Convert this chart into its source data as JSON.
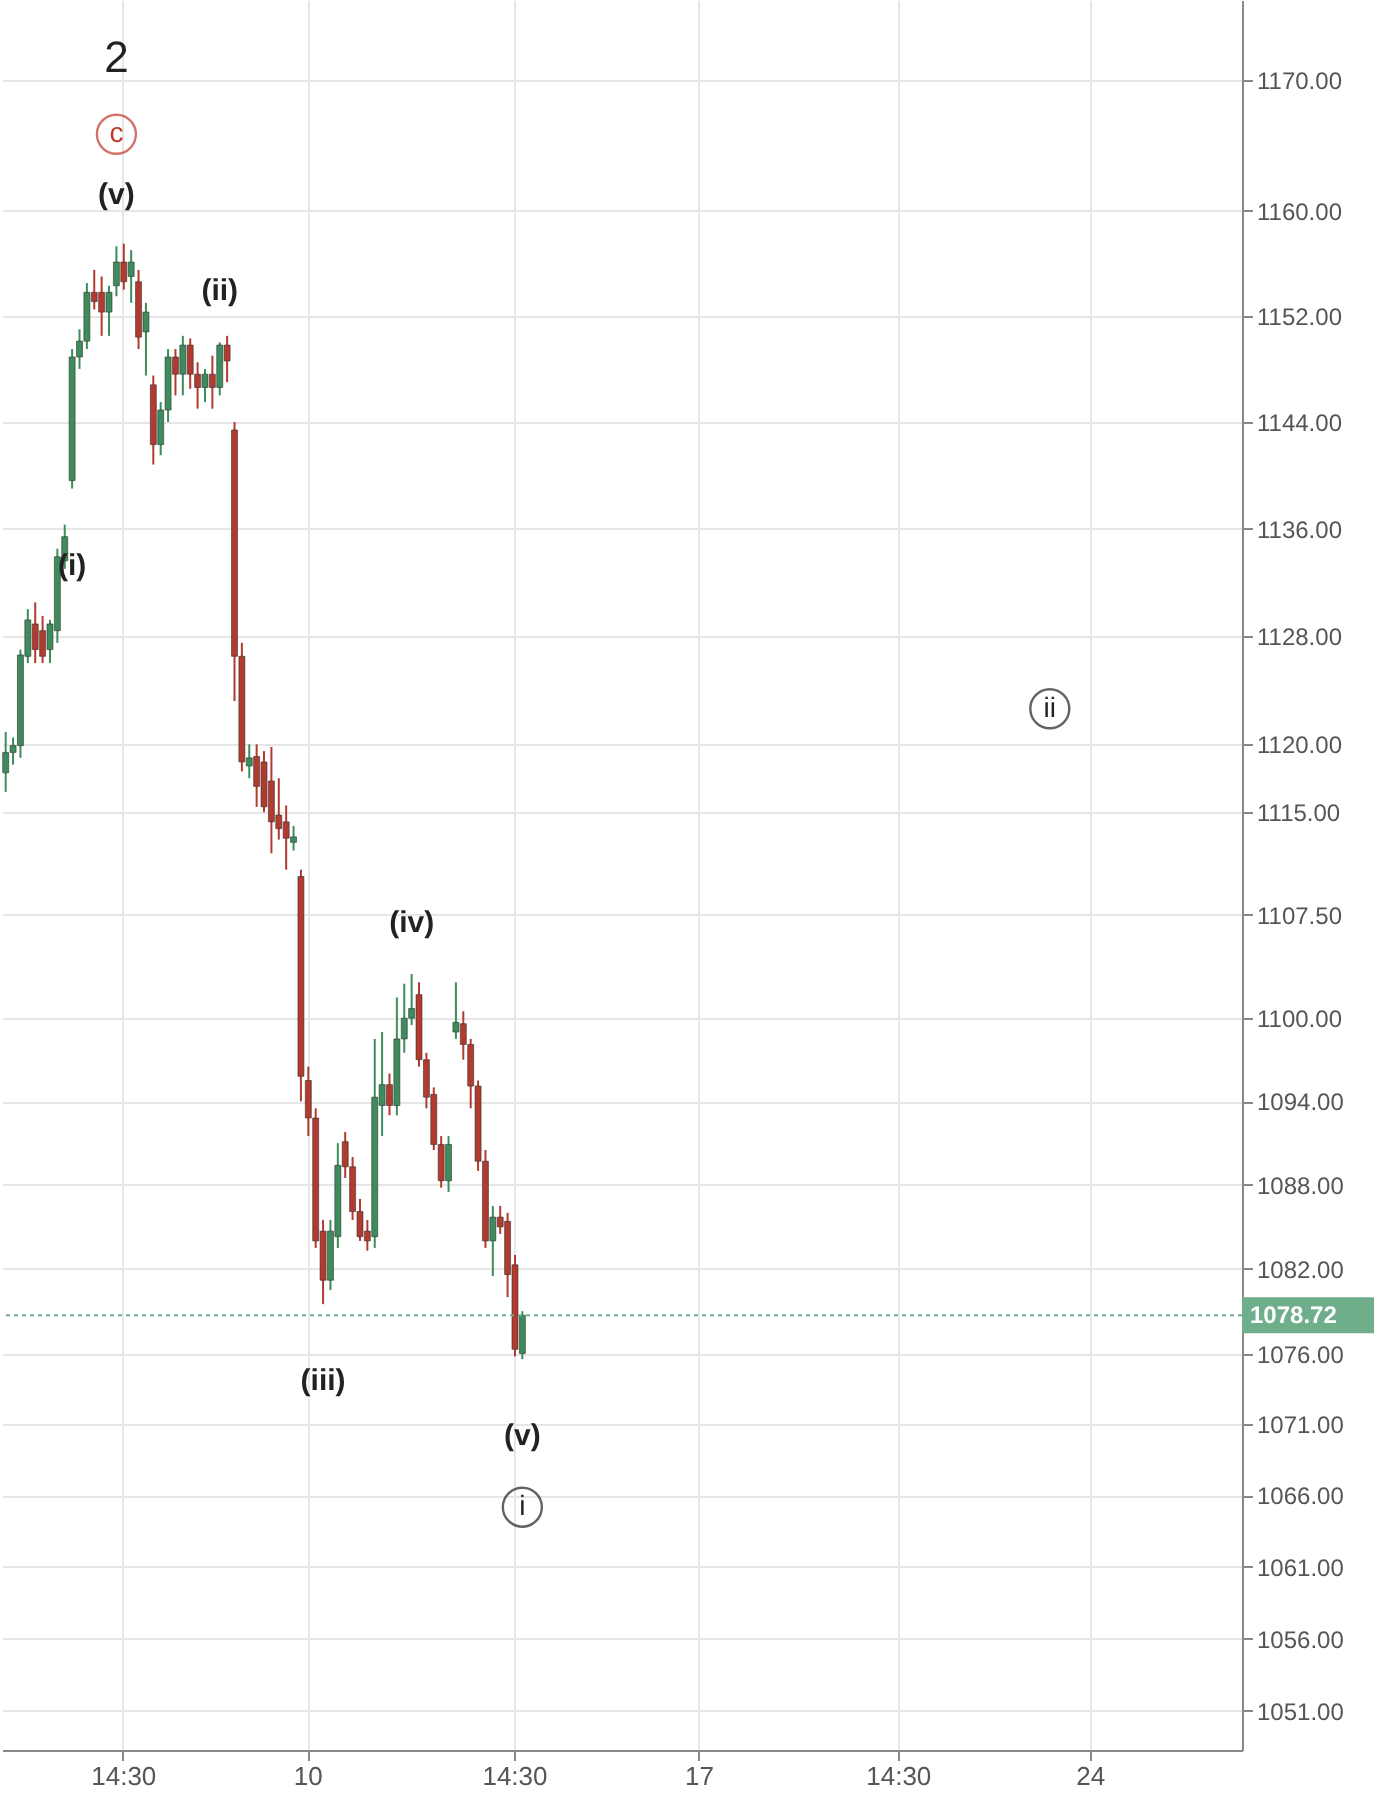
{
  "chart_data": {
    "type": "candlestick",
    "log": true,
    "grid": true,
    "categories": [
      null,
      null,
      null,
      null,
      null,
      null,
      null,
      null,
      null,
      null,
      null,
      null,
      null,
      null,
      null,
      null,
      "14:30",
      null,
      null,
      null,
      null,
      null,
      null,
      null,
      null,
      null,
      null,
      null,
      null,
      null,
      null,
      null,
      null,
      null,
      null,
      null,
      null,
      null,
      null,
      null,
      null,
      "10",
      null,
      null,
      null,
      null,
      null,
      null,
      null,
      null,
      null,
      null,
      null,
      null,
      null,
      null,
      null,
      null,
      null,
      null,
      null,
      null,
      null,
      null,
      null,
      null,
      null,
      null,
      null,
      "14:30",
      null,
      null,
      null,
      null,
      null,
      null,
      null,
      null,
      null,
      null,
      null,
      null,
      null,
      null,
      null,
      null,
      null,
      null,
      null,
      null,
      null,
      null,
      null,
      null,
      "17",
      null,
      null,
      null,
      null,
      null,
      null,
      null,
      null,
      null,
      null,
      null,
      null,
      null,
      null,
      null,
      null,
      null,
      null,
      null,
      null,
      null,
      null,
      null,
      null,
      null,
      null,
      "14:30",
      null,
      null,
      null,
      null,
      null,
      null,
      null,
      null,
      null,
      null,
      null,
      null,
      null,
      null,
      null,
      null,
      null,
      null,
      null,
      null,
      null,
      null,
      null,
      null,
      null,
      "24",
      null,
      null,
      null,
      null,
      null,
      null,
      null,
      null,
      null,
      null,
      null,
      null,
      null,
      null,
      null,
      null,
      null,
      null,
      null,
      null
    ],
    "ylim": [
      1048.3,
      1176.2
    ],
    "yticks": [
      {
        "value": 1051,
        "label": "1051.00"
      },
      {
        "value": 1056,
        "label": "1056.00"
      },
      {
        "value": 1061,
        "label": "1061.00"
      },
      {
        "value": 1066,
        "label": "1066.00"
      },
      {
        "value": 1071,
        "label": "1071.00"
      },
      {
        "value": 1076,
        "label": "1076.00"
      },
      {
        "value": 1082,
        "label": "1082.00"
      },
      {
        "value": 1088,
        "label": "1088.00"
      },
      {
        "value": 1094,
        "label": "1094.00"
      },
      {
        "value": 1100,
        "label": "1100.00"
      },
      {
        "value": 1107.5,
        "label": "1107.50"
      },
      {
        "value": 1115,
        "label": "1115.00"
      },
      {
        "value": 1120,
        "label": "1120.00"
      },
      {
        "value": 1128,
        "label": "1128.00"
      },
      {
        "value": 1136,
        "label": "1136.00"
      },
      {
        "value": 1144,
        "label": "1144.00"
      },
      {
        "value": 1152,
        "label": "1152.00"
      },
      {
        "value": 1160,
        "label": "1160.00"
      },
      {
        "value": 1170,
        "label": "1170.00"
      }
    ],
    "ohlc": [
      [
        1117.9,
        1120.9,
        1116.5,
        1119.4
      ],
      [
        1119.4,
        1120.5,
        1118.5,
        1119.9
      ],
      [
        1119.9,
        1127.0,
        1119.0,
        1126.6
      ],
      [
        1126.5,
        1130.0,
        1126.0,
        1129.2
      ],
      [
        1128.9,
        1130.5,
        1126.0,
        1127.0
      ],
      [
        1128.4,
        1129.5,
        1126.0,
        1126.5
      ],
      [
        1127.0,
        1129.2,
        1126.0,
        1128.9
      ],
      [
        1128.4,
        1134.5,
        1127.5,
        1133.9
      ],
      [
        1133.6,
        1136.3,
        1133.0,
        1135.4
      ],
      [
        1139.6,
        1149.5,
        1139.0,
        1148.9
      ],
      [
        1148.9,
        1151.0,
        1148.0,
        1150.1
      ],
      [
        1150.1,
        1154.5,
        1149.5,
        1153.8
      ],
      [
        1153.8,
        1155.5,
        1152.5,
        1153.1
      ],
      [
        1153.8,
        1155.0,
        1150.5,
        1152.3
      ],
      [
        1152.3,
        1154.3,
        1150.5,
        1153.8
      ],
      [
        1154.3,
        1157.3,
        1153.5,
        1156.1
      ],
      [
        1156.1,
        1157.5,
        1154.0,
        1154.6
      ],
      [
        1155.0,
        1157.0,
        1153.0,
        1156.1
      ],
      [
        1154.6,
        1155.5,
        1149.5,
        1150.4
      ],
      [
        1150.8,
        1153.0,
        1147.5,
        1152.3
      ],
      [
        1146.8,
        1147.5,
        1140.8,
        1142.3
      ],
      [
        1142.3,
        1145.5,
        1141.5,
        1144.9
      ],
      [
        1144.9,
        1149.5,
        1144.0,
        1148.9
      ],
      [
        1148.9,
        1149.5,
        1146.0,
        1147.6
      ],
      [
        1147.6,
        1150.5,
        1146.0,
        1149.8
      ],
      [
        1149.8,
        1150.3,
        1146.5,
        1147.6
      ],
      [
        1147.6,
        1148.5,
        1145.0,
        1146.6
      ],
      [
        1146.6,
        1148.0,
        1145.5,
        1147.6
      ],
      [
        1147.6,
        1149.0,
        1145.0,
        1146.6
      ],
      [
        1146.6,
        1150.0,
        1146.0,
        1149.8
      ],
      [
        1149.8,
        1150.5,
        1147.0,
        1148.6
      ],
      [
        1143.4,
        1144.0,
        1123.2,
        1126.5
      ],
      [
        1126.5,
        1127.5,
        1118.0,
        1118.7
      ],
      [
        1118.4,
        1120.0,
        1117.5,
        1119.0
      ],
      [
        1119.1,
        1120.0,
        1115.4,
        1116.9
      ],
      [
        1118.7,
        1119.5,
        1115.0,
        1115.4
      ],
      [
        1117.3,
        1119.8,
        1112.0,
        1114.3
      ],
      [
        1114.8,
        1117.5,
        1113.0,
        1113.8
      ],
      [
        1114.3,
        1115.5,
        1110.8,
        1113.1
      ],
      [
        1112.8,
        1114.0,
        1112.2,
        1113.2
      ],
      [
        1110.3,
        1110.8,
        1094.0,
        1095.8
      ],
      [
        1095.5,
        1096.5,
        1091.5,
        1092.8
      ],
      [
        1092.8,
        1093.5,
        1083.5,
        1084.0
      ],
      [
        1084.7,
        1085.5,
        1079.5,
        1081.2
      ],
      [
        1081.2,
        1085.5,
        1080.5,
        1084.7
      ],
      [
        1084.3,
        1091.0,
        1083.5,
        1089.4
      ],
      [
        1091.1,
        1091.8,
        1088.5,
        1089.3
      ],
      [
        1089.3,
        1090.0,
        1085.5,
        1086.1
      ],
      [
        1086.1,
        1087.0,
        1084.0,
        1084.3
      ],
      [
        1084.7,
        1085.5,
        1083.3,
        1084.0
      ],
      [
        1084.3,
        1098.5,
        1083.5,
        1094.3
      ],
      [
        1093.7,
        1099.0,
        1091.5,
        1095.2
      ],
      [
        1095.2,
        1096.0,
        1093.0,
        1093.7
      ],
      [
        1093.7,
        1101.5,
        1093.0,
        1098.5
      ],
      [
        1098.5,
        1102.5,
        1097.5,
        1100.0
      ],
      [
        1100.0,
        1103.2,
        1099.5,
        1100.7
      ],
      [
        1101.7,
        1102.6,
        1096.5,
        1097.0
      ],
      [
        1097.0,
        1097.5,
        1093.5,
        1094.3
      ],
      [
        1094.5,
        1095.0,
        1090.5,
        1090.9
      ],
      [
        1090.9,
        1091.5,
        1087.8,
        1088.3
      ],
      [
        1088.3,
        1091.5,
        1087.5,
        1090.9
      ],
      [
        1099.0,
        1102.6,
        1098.5,
        1099.7
      ],
      [
        1099.6,
        1100.5,
        1097.0,
        1098.1
      ],
      [
        1098.1,
        1098.5,
        1093.5,
        1095.1
      ],
      [
        1095.1,
        1095.5,
        1089.0,
        1089.7
      ],
      [
        1089.7,
        1090.5,
        1083.5,
        1084.0
      ],
      [
        1084.0,
        1086.5,
        1081.5,
        1085.7
      ],
      [
        1085.7,
        1086.5,
        1084.5,
        1085.0
      ],
      [
        1085.4,
        1086.0,
        1080.0,
        1081.6
      ],
      [
        1082.3,
        1083.0,
        1075.8,
        1076.3
      ],
      [
        1076.0,
        1079.0,
        1075.6,
        1078.7
      ],
      null,
      null,
      null,
      null,
      null,
      null,
      null,
      null,
      null,
      null,
      null,
      null,
      null,
      null,
      null,
      null,
      null,
      null,
      null,
      null,
      null,
      null,
      null,
      null,
      null,
      null,
      null,
      null,
      null,
      null,
      null,
      null,
      null,
      null,
      null,
      null,
      null,
      null,
      null,
      null,
      null,
      null,
      null,
      null,
      null,
      null,
      null,
      null,
      null,
      null,
      null,
      null,
      null,
      null,
      null,
      null,
      null,
      null,
      null,
      null,
      null,
      null,
      null,
      null,
      null,
      null,
      null,
      null,
      null,
      null,
      null,
      null,
      null,
      null,
      null,
      null,
      null,
      null,
      null,
      null,
      null,
      null,
      null,
      null,
      null,
      null,
      null,
      null,
      null,
      null,
      null,
      null,
      null,
      null,
      null,
      null,
      null
    ],
    "colors": [
      "#3d8c5c",
      "#3d8c5c",
      "#3d8c5c",
      "#3d8c5c",
      "#b23a2e",
      "#b23a2e",
      "#3d8c5c",
      "#3d8c5c",
      "#3d8c5c",
      "#3d8c5c",
      "#3d8c5c",
      "#3d8c5c",
      "#b23a2e",
      "#b23a2e",
      "#3d8c5c",
      "#3d8c5c",
      "#b23a2e",
      "#3d8c5c",
      "#b23a2e",
      "#3d8c5c",
      "#b23a2e",
      "#3d8c5c",
      "#3d8c5c",
      "#b23a2e",
      "#3d8c5c",
      "#b23a2e",
      "#b23a2e",
      "#3d8c5c",
      "#b23a2e",
      "#3d8c5c",
      "#b23a2e",
      "#b23a2e",
      "#b23a2e",
      "#3d8c5c",
      "#b23a2e",
      "#b23a2e",
      "#b23a2e",
      "#b23a2e",
      "#b23a2e",
      "#3d8c5c",
      "#b23a2e",
      "#b23a2e",
      "#b23a2e",
      "#b23a2e",
      "#3d8c5c",
      "#3d8c5c",
      "#b23a2e",
      "#b23a2e",
      "#b23a2e",
      "#b23a2e",
      "#3d8c5c",
      "#3d8c5c",
      "#b23a2e",
      "#3d8c5c",
      "#3d8c5c",
      "#3d8c5c",
      "#b23a2e",
      "#b23a2e",
      "#b23a2e",
      "#b23a2e",
      "#3d8c5c",
      "#3d8c5c",
      "#b23a2e",
      "#b23a2e",
      "#b23a2e",
      "#b23a2e",
      "#3d8c5c",
      "#b23a2e",
      "#b23a2e",
      "#b23a2e",
      "#3d8c5c",
      null,
      null,
      null,
      null,
      null,
      null,
      null,
      null,
      null,
      null,
      null,
      null,
      null,
      null,
      null,
      null,
      null,
      null,
      null,
      null,
      null,
      null,
      null,
      null,
      null,
      null,
      null,
      null,
      null,
      null,
      null,
      null,
      null,
      null,
      null,
      null,
      null,
      null,
      null,
      null,
      null,
      null,
      null,
      null,
      null,
      null,
      null,
      null,
      null,
      null,
      null,
      null,
      null,
      null,
      null,
      null,
      null,
      null,
      null,
      null,
      null,
      null,
      null,
      null,
      null,
      null,
      null,
      null,
      null,
      null,
      null,
      null,
      null,
      null,
      null,
      null,
      null,
      null,
      null,
      null,
      null,
      null,
      null,
      null,
      null,
      null,
      null,
      null,
      null,
      null,
      null,
      null,
      null,
      null,
      null,
      null,
      null
    ],
    "ref_lines": [
      {
        "axis": "y",
        "value": 1078.72,
        "label": "1078.72",
        "color": "#6fae8a",
        "line_style": "dotted"
      }
    ],
    "annotations": [
      "2",
      "c",
      {
        "text": "(v)",
        "y": 1157.3
      },
      {
        "text": "(i)",
        "y": 1139.0
      },
      {
        "text": "(ii)",
        "y": 1150.0
      },
      {
        "text": "(iii)",
        "y": 1079.5
      },
      {
        "text": "(iv)",
        "y": 1103.2
      },
      {
        "text": "(v)",
        "y": 1075.6
      },
      "i",
      "ii"
    ]
  }
}
